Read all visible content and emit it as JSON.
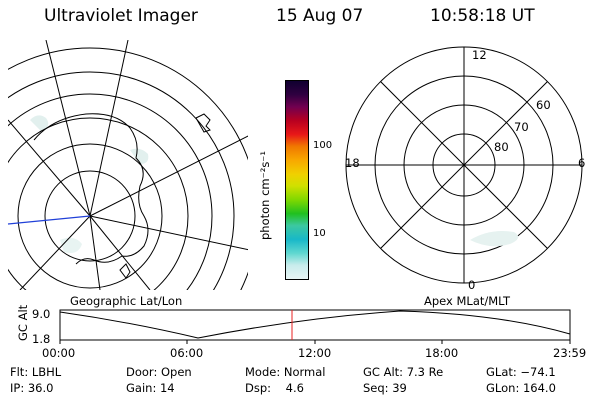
{
  "header": {
    "instrument": "Ultraviolet Imager",
    "date": "15 Aug 07",
    "time": "10:58:18 UT"
  },
  "colorbar": {
    "unit_label": "photon cm⁻²s⁻¹",
    "ticks": [
      "100",
      "10"
    ],
    "colors": [
      "#e8f4f4",
      "#c8ecec",
      "#60d8d0",
      "#18b8c8",
      "#3cc8a0",
      "#20c020",
      "#80d800",
      "#d0e000",
      "#f0d000",
      "#f8a800",
      "#f07800",
      "#e81818",
      "#b80020",
      "#700050",
      "#300040",
      "#100030"
    ]
  },
  "geo_panel": {
    "label": "Geographic Lat/Lon"
  },
  "mlt_panel": {
    "label": "Apex MLat/MLT",
    "mlt_labels": {
      "top": "12",
      "left": "18",
      "right": "6",
      "bottom": "0"
    },
    "lat_labels": [
      "60",
      "70",
      "80"
    ]
  },
  "timeline": {
    "ylabel": "GC Alt",
    "y_top": "9.0",
    "y_bottom": "1.8",
    "x_ticks": [
      "00:00",
      "06:00",
      "12:00",
      "18:00",
      "23:59"
    ],
    "marker_color": "#e82020"
  },
  "info": {
    "row1": [
      {
        "key": "Flt:",
        "value": "LBHL"
      },
      {
        "key": "Door:",
        "value": "Open"
      },
      {
        "key": "Mode:",
        "value": "Normal"
      },
      {
        "key": "GC Alt:",
        "value": "7.3 Re"
      },
      {
        "key": "GLat:",
        "value": "−74.1"
      }
    ],
    "row2": [
      {
        "key": "IP:",
        "value": "36.0"
      },
      {
        "key": "Gain:",
        "value": "14"
      },
      {
        "key": "Dsp:",
        "value": "4.6"
      },
      {
        "key": "Seq:",
        "value": "39"
      },
      {
        "key": "GLon:",
        "value": "164.0"
      }
    ]
  }
}
